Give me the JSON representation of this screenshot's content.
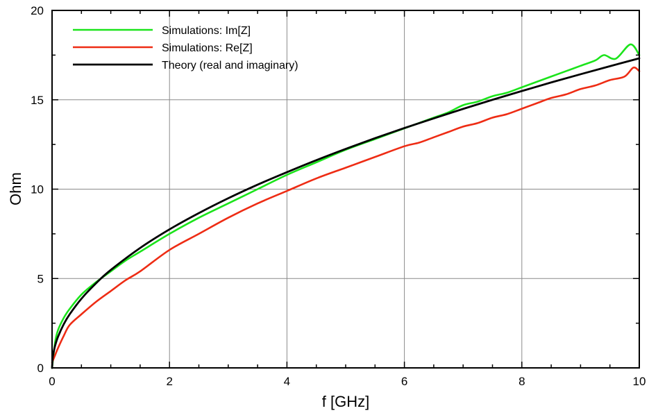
{
  "chart_data": {
    "type": "line",
    "title": "",
    "xlabel": "f [GHz]",
    "ylabel": "Ohm",
    "xlim": [
      0,
      10
    ],
    "ylim": [
      0,
      20
    ],
    "x_ticks": [
      0,
      2,
      4,
      6,
      8,
      10
    ],
    "x_tick_labels": [
      "0",
      "2",
      "4",
      "6",
      "8",
      "10"
    ],
    "y_ticks": [
      0,
      5,
      10,
      15,
      20
    ],
    "y_tick_labels": [
      "0",
      "5",
      "10",
      "15",
      "20"
    ],
    "grid": true,
    "legend_position": "top-left",
    "series": [
      {
        "name": "Simulations: Im[Z]",
        "color": "#1be41b",
        "x": [
          0,
          0.05,
          0.1,
          0.2,
          0.3,
          0.5,
          0.75,
          1,
          1.25,
          1.5,
          2,
          2.5,
          3,
          3.5,
          4,
          4.5,
          5,
          5.5,
          6,
          6.25,
          6.5,
          6.75,
          7,
          7.25,
          7.5,
          7.75,
          8,
          8.25,
          8.5,
          8.75,
          9,
          9.25,
          9.4,
          9.6,
          9.85,
          10
        ],
        "y": [
          0,
          1.4,
          2.1,
          2.8,
          3.3,
          4.1,
          4.8,
          5.4,
          6.0,
          6.5,
          7.5,
          8.4,
          9.2,
          10.0,
          10.8,
          11.5,
          12.2,
          12.8,
          13.4,
          13.7,
          14.0,
          14.3,
          14.7,
          14.9,
          15.2,
          15.4,
          15.7,
          16.0,
          16.3,
          16.6,
          16.9,
          17.2,
          17.5,
          17.3,
          18.1,
          17.5
        ]
      },
      {
        "name": "Simulations: Re[Z]",
        "color": "#ee2c14",
        "x": [
          0,
          0.05,
          0.1,
          0.2,
          0.3,
          0.5,
          0.75,
          1,
          1.25,
          1.5,
          2,
          2.5,
          3,
          3.5,
          4,
          4.5,
          5,
          5.5,
          6,
          6.25,
          6.5,
          6.75,
          7,
          7.25,
          7.5,
          7.75,
          8,
          8.25,
          8.5,
          8.75,
          9,
          9.25,
          9.5,
          9.75,
          9.9,
          10
        ],
        "y": [
          0.3,
          0.7,
          1.1,
          1.8,
          2.4,
          3.0,
          3.7,
          4.3,
          4.9,
          5.4,
          6.6,
          7.5,
          8.4,
          9.2,
          9.9,
          10.6,
          11.2,
          11.8,
          12.4,
          12.6,
          12.9,
          13.2,
          13.5,
          13.7,
          14.0,
          14.2,
          14.5,
          14.8,
          15.1,
          15.3,
          15.6,
          15.8,
          16.1,
          16.3,
          16.8,
          16.6
        ]
      },
      {
        "name": "Theory (real and imaginary)",
        "color": "#000000",
        "x": [
          0,
          0.01,
          0.02,
          0.05,
          0.1,
          0.2,
          0.3,
          0.5,
          0.75,
          1,
          1.5,
          2,
          2.5,
          3,
          3.5,
          4,
          4.5,
          5,
          5.5,
          6,
          6.5,
          7,
          7.5,
          8,
          8.5,
          9,
          9.5,
          10
        ],
        "y": [
          0,
          0.55,
          0.77,
          1.22,
          1.73,
          2.45,
          3.0,
          3.87,
          4.74,
          5.48,
          6.71,
          7.75,
          8.66,
          9.49,
          10.25,
          10.95,
          11.62,
          12.25,
          12.85,
          13.42,
          13.96,
          14.49,
          15.0,
          15.49,
          15.97,
          16.43,
          16.88,
          17.32
        ]
      }
    ]
  }
}
